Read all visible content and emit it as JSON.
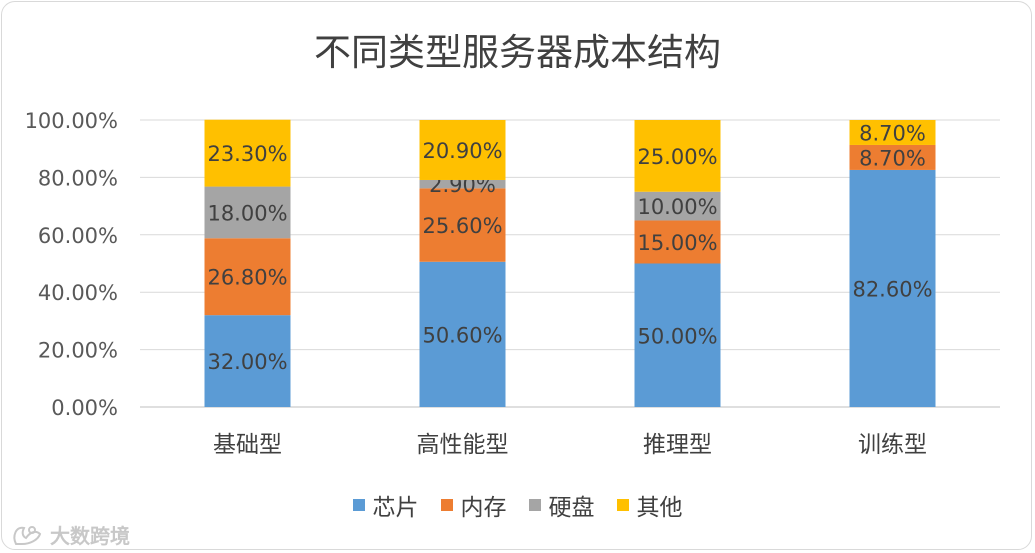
{
  "chart_data": {
    "type": "stacked-bar",
    "title": "不同类型服务器成本结构",
    "categories": [
      "基础型",
      "高性能型",
      "推理型",
      "训练型"
    ],
    "yticks": [
      "0.00%",
      "20.00%",
      "40.00%",
      "60.00%",
      "80.00%",
      "100.00%"
    ],
    "ylim": [
      0,
      100
    ],
    "grid": true,
    "legend_position": "bottom",
    "series": [
      {
        "name": "芯片",
        "color": "#5b9bd5",
        "values": [
          32.0,
          50.6,
          50.0,
          82.6
        ],
        "labels": [
          "32.00%",
          "50.60%",
          "50.00%",
          "82.60%"
        ]
      },
      {
        "name": "内存",
        "color": "#ed7d31",
        "values": [
          26.8,
          25.6,
          15.0,
          8.7
        ],
        "labels": [
          "26.80%",
          "25.60%",
          "15.00%",
          "8.70%"
        ]
      },
      {
        "name": "硬盘",
        "color": "#a5a5a5",
        "values": [
          18.0,
          2.9,
          10.0,
          0
        ],
        "labels": [
          "18.00%",
          "2.90%",
          "10.00%",
          ""
        ]
      },
      {
        "name": "其他",
        "color": "#ffc000",
        "values": [
          23.3,
          20.9,
          25.0,
          8.7
        ],
        "labels": [
          "23.30%",
          "20.90%",
          "25.00%",
          "8.70%"
        ]
      }
    ]
  },
  "watermark": {
    "text": "大数跨境",
    "logo_icon": "rabbit-logo-icon"
  }
}
